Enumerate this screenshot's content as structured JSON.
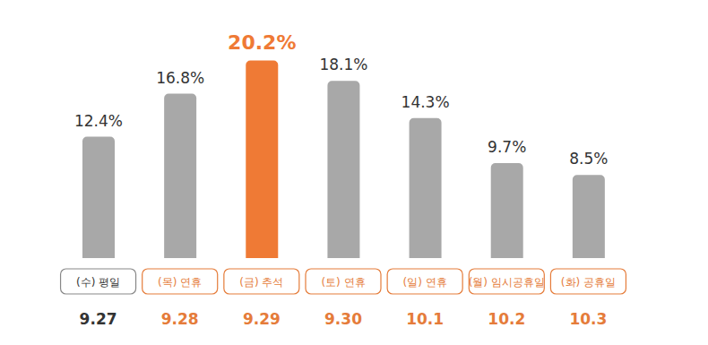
{
  "chart_data": {
    "type": "bar",
    "categories": [
      "(수) 평일\n9.27",
      "(목) 연휴\n9.28",
      "(금) 추석\n9.29",
      "(토) 연휴\n9.30",
      "(일) 연휴\n10.1",
      "(월) 임시공휴일\n10.2",
      "(화) 공휴일\n10.3"
    ],
    "values": [
      12.4,
      16.8,
      20.2,
      18.1,
      14.3,
      9.7,
      8.5
    ],
    "value_labels": [
      "12.4%",
      "16.8%",
      "20.2%",
      "18.1%",
      "14.3%",
      "9.7%",
      "8.5%"
    ],
    "colors": [
      "#a8a8a8",
      "#a8a8a8",
      "#ef7a35",
      "#a8a8a8",
      "#a8a8a8",
      "#a8a8a8",
      "#a8a8a8"
    ],
    "ylim": [
      0,
      25
    ],
    "data_labels": true,
    "tick_labels": "x"
  }
}
